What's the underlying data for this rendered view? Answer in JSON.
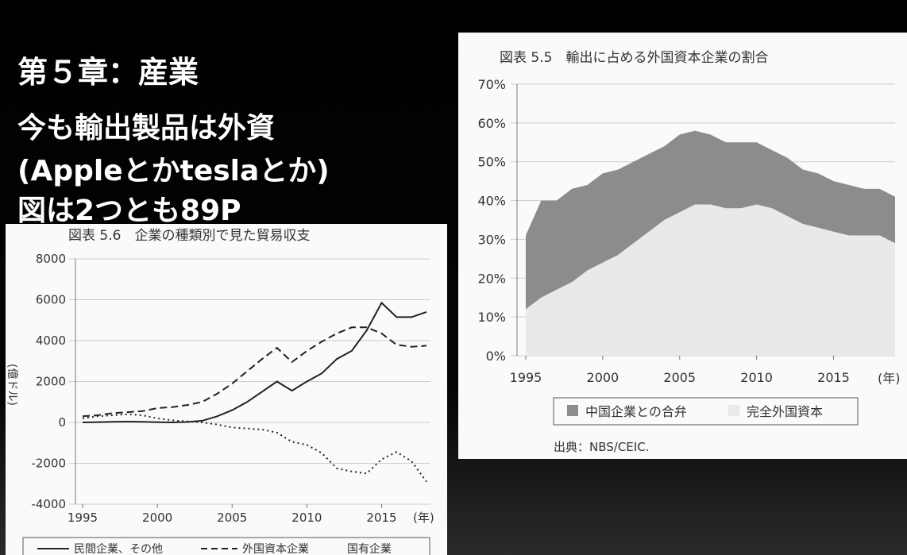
{
  "slide": {
    "title": "第５章：産業",
    "lines": [
      "今も輸出製品は外資",
      "(Appleとかteslaとか)",
      "図は2つとも89P"
    ]
  },
  "chart_data": [
    {
      "type": "area",
      "stacked": true,
      "title": "図表 5.5　輸出に占める外国資本企業の割合",
      "unit": "(年)",
      "x": [
        1995,
        1996,
        1997,
        1998,
        1999,
        2000,
        2001,
        2002,
        2003,
        2004,
        2005,
        2006,
        2007,
        2008,
        2009,
        2010,
        2011,
        2012,
        2013,
        2014,
        2015,
        2016,
        2017,
        2018,
        2019
      ],
      "x_ticks": [
        "1995",
        "2000",
        "2005",
        "2010",
        "2015"
      ],
      "ylim": [
        0,
        70
      ],
      "y_ticks": [
        "0%",
        "10%",
        "20%",
        "30%",
        "40%",
        "50%",
        "60%",
        "70%"
      ],
      "series": [
        {
          "name": "完全外国資本",
          "color": "#e9e9e9",
          "values": [
            12,
            15,
            17,
            19,
            22,
            24,
            26,
            29,
            32,
            35,
            37,
            39,
            39,
            38,
            38,
            39,
            38,
            36,
            34,
            33,
            32,
            31,
            31,
            31,
            29
          ]
        },
        {
          "name": "中国企業との合弁",
          "color": "#8c8c8c",
          "values": [
            19,
            25,
            23,
            24,
            22,
            23,
            22,
            21,
            20,
            19,
            20,
            19,
            18,
            17,
            17,
            16,
            15,
            15,
            14,
            14,
            13,
            13,
            12,
            12,
            12
          ]
        }
      ],
      "legend": [
        "中国企業との合弁",
        "完全外国資本"
      ],
      "legend_position": "bottom",
      "source": "出典：NBS/CEIC."
    },
    {
      "type": "line",
      "title": "図表 5.6　企業の種類別で見た貿易収支",
      "ylabel": "(億ドル)",
      "unit": "(年)",
      "x": [
        1995,
        1996,
        1997,
        1998,
        1999,
        2000,
        2001,
        2002,
        2003,
        2004,
        2005,
        2006,
        2007,
        2008,
        2009,
        2010,
        2011,
        2012,
        2013,
        2014,
        2015,
        2016,
        2017,
        2018
      ],
      "x_ticks": [
        "1995",
        "2000",
        "2005",
        "2010",
        "2015"
      ],
      "ylim": [
        -4000,
        8000
      ],
      "y_ticks": [
        "-4000",
        "-2000",
        "0",
        "2000",
        "4000",
        "6000",
        "8000"
      ],
      "series": [
        {
          "name": "民間企業、その他",
          "style": "solid",
          "values": [
            0,
            10,
            30,
            40,
            30,
            10,
            0,
            20,
            80,
            300,
            600,
            1000,
            1500,
            2000,
            1550,
            2000,
            2400,
            3100,
            3500,
            4500,
            5850,
            5150,
            5150,
            5400
          ]
        },
        {
          "name": "外国資本企業",
          "style": "dashed",
          "values": [
            300,
            350,
            450,
            500,
            550,
            700,
            750,
            850,
            1000,
            1400,
            1900,
            2500,
            3100,
            3650,
            2950,
            3500,
            3950,
            4350,
            4650,
            4650,
            4350,
            3800,
            3700,
            3750
          ]
        },
        {
          "name": "国有企業",
          "style": "dotted",
          "values": [
            200,
            300,
            350,
            400,
            350,
            200,
            100,
            50,
            0,
            -100,
            -250,
            -300,
            -350,
            -500,
            -950,
            -1100,
            -1500,
            -2250,
            -2400,
            -2500,
            -1800,
            -1450,
            -1900,
            -2900
          ]
        }
      ],
      "legend": [
        "民間企業、その他",
        "外国資本企業",
        "国有企業"
      ],
      "legend_position": "bottom"
    }
  ]
}
